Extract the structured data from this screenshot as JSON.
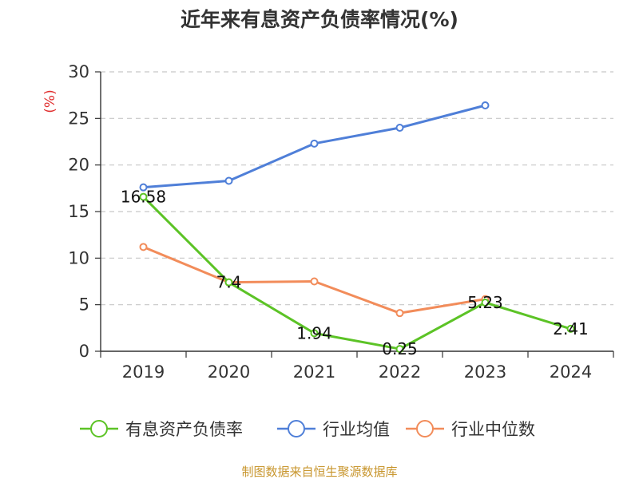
{
  "chart_data": {
    "type": "line",
    "title": "近年来有息资产负债率情况(%)",
    "ylabel": "(%)",
    "xlabel": "",
    "categories": [
      "2019",
      "2020",
      "2021",
      "2022",
      "2023",
      "2024"
    ],
    "ylim": [
      0,
      30
    ],
    "yticks": [
      0,
      5,
      10,
      15,
      20,
      25,
      30
    ],
    "grid": true,
    "legend_position": "bottom",
    "series": [
      {
        "name": "有息资产负债率",
        "color": "#5cc326",
        "values": [
          16.58,
          7.4,
          1.94,
          0.25,
          5.23,
          2.41
        ],
        "labels": [
          "16.58",
          "7.4",
          "1.94",
          "0.25",
          "5.23",
          "2.41"
        ]
      },
      {
        "name": "行业均值",
        "color": "#4f7fd8",
        "values": [
          17.6,
          18.3,
          22.3,
          24.0,
          26.4,
          null
        ]
      },
      {
        "name": "行业中位数",
        "color": "#f28c5a",
        "values": [
          11.2,
          7.4,
          7.5,
          4.1,
          5.6,
          null
        ]
      }
    ]
  },
  "source": "制图数据来自恒生聚源数据库"
}
